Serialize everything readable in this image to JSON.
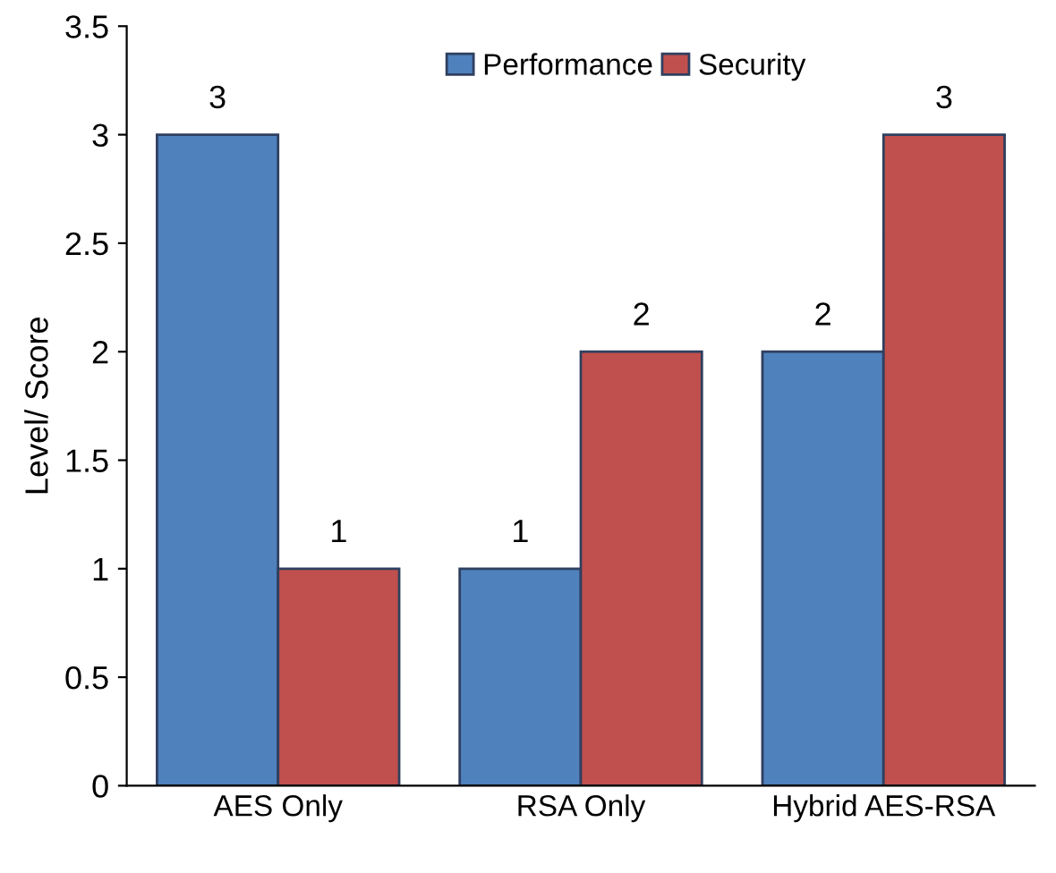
{
  "chart_data": {
    "type": "bar",
    "ylabel": "Level/ Score",
    "categories": [
      "AES Only",
      "RSA Only",
      "Hybrid AES-RSA"
    ],
    "series": [
      {
        "name": "Performance",
        "color": "#4f81bd",
        "values": [
          3,
          1,
          2
        ]
      },
      {
        "name": "Security",
        "color": "#c0504d",
        "values": [
          1,
          2,
          3
        ]
      }
    ],
    "ylim": [
      0,
      3.5
    ],
    "yticks": [
      0,
      0.5,
      1,
      1.5,
      2,
      2.5,
      3,
      3.5
    ],
    "data_labels": true,
    "legend": "top",
    "grid": false
  }
}
